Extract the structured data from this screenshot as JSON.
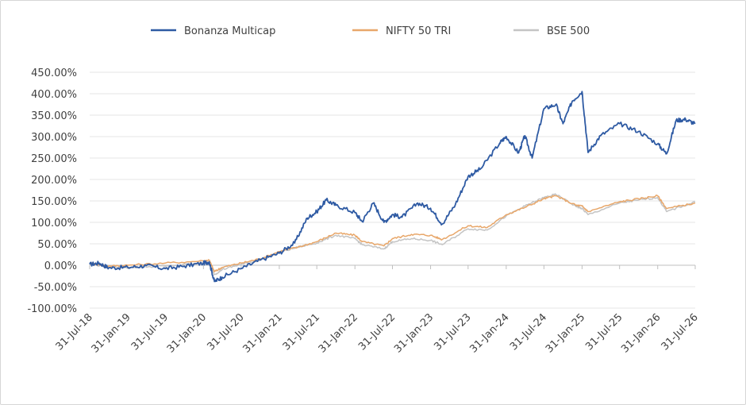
{
  "chart_data": {
    "type": "line",
    "title": "",
    "xlabel": "",
    "ylabel": "",
    "ylim": [
      -100,
      450
    ],
    "yticks": [
      -100,
      -50,
      0,
      50,
      100,
      150,
      200,
      250,
      300,
      350,
      400,
      450
    ],
    "ytick_labels": [
      "-100.00%",
      "-50.00%",
      "0.00%",
      "50.00%",
      "100.00%",
      "150.00%",
      "200.00%",
      "250.00%",
      "300.00%",
      "350.00%",
      "400.00%",
      "450.00%"
    ],
    "xlim": [
      "2018-07-31",
      "2026-07-31"
    ],
    "xticks": [
      "2018-07-31",
      "2019-01-31",
      "2019-07-31",
      "2020-01-31",
      "2020-07-31",
      "2021-01-31",
      "2021-07-31",
      "2022-01-31",
      "2022-07-31",
      "2023-01-31",
      "2023-07-31",
      "2024-01-31",
      "2024-07-31",
      "2025-01-31",
      "2025-07-31",
      "2026-01-31",
      "2026-07-31"
    ],
    "xtick_labels": [
      "31-Jul-18",
      "31-Jan-19",
      "31-Jul-19",
      "31-Jan-20",
      "31-Jul-20",
      "31-Jan-21",
      "31-Jul-21",
      "31-Jan-22",
      "31-Jul-22",
      "31-Jan-23",
      "31-Jul-23",
      "31-Jan-24",
      "31-Jul-24",
      "31-Jan-25",
      "31-Jul-25",
      "31-Jan-26",
      "31-Jul-26"
    ],
    "grid": "horizontal",
    "legend_position": "top",
    "series": [
      {
        "name": "Bonanza Multicap",
        "color": "#2e5aa3",
        "x": [
          "2018-07-31",
          "2018-09-15",
          "2018-10-31",
          "2019-01-31",
          "2019-04-30",
          "2019-07-31",
          "2019-10-31",
          "2020-01-31",
          "2020-02-28",
          "2020-03-24",
          "2020-04-30",
          "2020-07-31",
          "2020-10-31",
          "2021-01-31",
          "2021-04-15",
          "2021-06-15",
          "2021-07-31",
          "2021-09-15",
          "2021-10-31",
          "2022-01-31",
          "2022-03-07",
          "2022-04-30",
          "2022-06-20",
          "2022-07-31",
          "2022-09-15",
          "2022-11-30",
          "2023-01-31",
          "2023-03-28",
          "2023-05-31",
          "2023-07-31",
          "2023-09-30",
          "2023-12-31",
          "2024-01-31",
          "2024-03-31",
          "2024-04-30",
          "2024-06-04",
          "2024-07-31",
          "2024-09-27",
          "2024-10-31",
          "2024-12-15",
          "2025-01-31",
          "2025-03-01",
          "2025-04-30",
          "2025-07-31",
          "2025-10-31",
          "2026-01-31",
          "2026-03-15",
          "2026-04-30",
          "2026-06-15",
          "2026-07-31"
        ],
        "values": [
          2,
          5,
          -6,
          -5,
          -1,
          -8,
          -2,
          5,
          8,
          -38,
          -28,
          -8,
          12,
          28,
          52,
          110,
          125,
          152,
          140,
          123,
          102,
          145,
          100,
          118,
          112,
          145,
          133,
          96,
          142,
          207,
          225,
          285,
          300,
          262,
          302,
          250,
          365,
          375,
          330,
          383,
          405,
          263,
          302,
          330,
          312,
          283,
          260,
          338,
          340,
          330
        ]
      },
      {
        "name": "NIFTY 50 TRI",
        "color": "#e8a76a",
        "x": [
          "2018-07-31",
          "2018-10-31",
          "2019-01-31",
          "2019-07-31",
          "2020-01-31",
          "2020-02-28",
          "2020-03-24",
          "2020-04-30",
          "2020-07-31",
          "2020-10-31",
          "2021-01-31",
          "2021-04-30",
          "2021-07-31",
          "2021-10-31",
          "2022-01-31",
          "2022-03-07",
          "2022-06-20",
          "2022-07-31",
          "2022-10-31",
          "2023-01-31",
          "2023-03-28",
          "2023-07-31",
          "2023-10-31",
          "2024-01-31",
          "2024-04-30",
          "2024-07-31",
          "2024-09-27",
          "2024-12-31",
          "2025-01-31",
          "2025-03-01",
          "2025-07-31",
          "2025-10-31",
          "2026-01-31",
          "2026-03-15",
          "2026-07-31"
        ],
        "values": [
          5,
          -2,
          0,
          5,
          10,
          12,
          -15,
          -5,
          5,
          15,
          32,
          42,
          55,
          75,
          70,
          55,
          45,
          62,
          72,
          70,
          60,
          92,
          88,
          118,
          135,
          155,
          162,
          140,
          138,
          125,
          148,
          155,
          162,
          132,
          145
        ]
      },
      {
        "name": "BSE 500",
        "color": "#c4c4c4",
        "x": [
          "2018-07-31",
          "2018-10-31",
          "2019-01-31",
          "2019-07-31",
          "2020-01-31",
          "2020-02-28",
          "2020-03-24",
          "2020-04-30",
          "2020-07-31",
          "2020-10-31",
          "2021-01-31",
          "2021-04-30",
          "2021-07-31",
          "2021-10-31",
          "2022-01-31",
          "2022-03-07",
          "2022-06-20",
          "2022-07-31",
          "2022-10-31",
          "2023-01-31",
          "2023-03-28",
          "2023-07-31",
          "2023-10-31",
          "2024-01-31",
          "2024-04-30",
          "2024-07-31",
          "2024-09-27",
          "2024-12-31",
          "2025-01-31",
          "2025-03-01",
          "2025-07-31",
          "2025-10-31",
          "2026-01-31",
          "2026-03-15",
          "2026-07-31"
        ],
        "values": [
          3,
          -4,
          -5,
          -2,
          5,
          6,
          -22,
          -10,
          2,
          12,
          30,
          42,
          52,
          70,
          62,
          48,
          38,
          55,
          62,
          58,
          48,
          85,
          82,
          115,
          138,
          158,
          165,
          138,
          132,
          118,
          145,
          152,
          158,
          125,
          148
        ]
      }
    ]
  }
}
